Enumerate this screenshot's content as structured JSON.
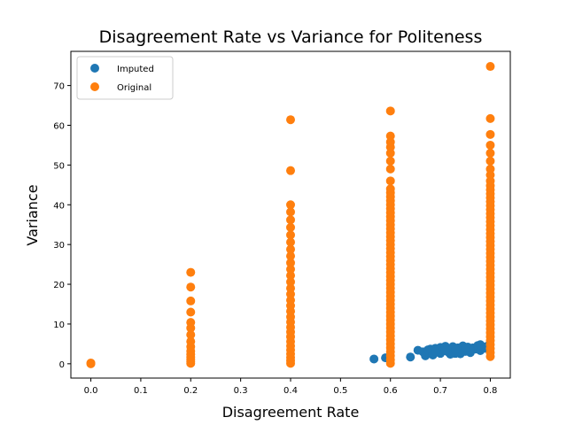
{
  "chart_data": {
    "type": "scatter",
    "title": "Disagreement Rate vs Variance for Politeness",
    "xlabel": "Disagreement Rate",
    "ylabel": "Variance",
    "xlim": [
      -0.04,
      0.84
    ],
    "ylim": [
      -3.6,
      78.6
    ],
    "xticks": [
      0.0,
      0.1,
      0.2,
      0.3,
      0.4,
      0.5,
      0.6,
      0.7,
      0.8
    ],
    "yticks": [
      0,
      10,
      20,
      30,
      40,
      50,
      60,
      70
    ],
    "grid": false,
    "legend_position": "upper left",
    "series": [
      {
        "name": "Imputed",
        "color": "#1f77b4",
        "points": [
          [
            0.567,
            1.2
          ],
          [
            0.59,
            1.5
          ],
          [
            0.64,
            1.7
          ],
          [
            0.655,
            3.4
          ],
          [
            0.665,
            3.0
          ],
          [
            0.67,
            2.0
          ],
          [
            0.675,
            3.5
          ],
          [
            0.68,
            3.7
          ],
          [
            0.685,
            2.2
          ],
          [
            0.69,
            3.9
          ],
          [
            0.695,
            3.5
          ],
          [
            0.7,
            4.1
          ],
          [
            0.705,
            3.2
          ],
          [
            0.71,
            4.4
          ],
          [
            0.715,
            3.0
          ],
          [
            0.72,
            3.8
          ],
          [
            0.725,
            4.3
          ],
          [
            0.73,
            2.6
          ],
          [
            0.735,
            4.0
          ],
          [
            0.74,
            3.6
          ],
          [
            0.745,
            4.5
          ],
          [
            0.75,
            3.1
          ],
          [
            0.755,
            4.2
          ],
          [
            0.76,
            2.8
          ],
          [
            0.765,
            4.0
          ],
          [
            0.77,
            3.7
          ],
          [
            0.775,
            4.6
          ],
          [
            0.78,
            3.3
          ],
          [
            0.785,
            4.3
          ],
          [
            0.79,
            3.9
          ],
          [
            0.795,
            4.5
          ],
          [
            0.7,
            2.6
          ],
          [
            0.72,
            2.4
          ],
          [
            0.74,
            2.5
          ],
          [
            0.76,
            3.4
          ],
          [
            0.78,
            4.8
          ],
          [
            0.73,
            3.5
          ],
          [
            0.75,
            4.0
          ],
          [
            0.71,
            3.3
          ],
          [
            0.69,
            3.0
          ]
        ]
      },
      {
        "name": "Original",
        "color": "#ff7f0e",
        "points": [
          [
            0.0,
            0.0
          ],
          [
            0.0,
            0.2
          ],
          [
            0.2,
            0.1
          ],
          [
            0.2,
            0.6
          ],
          [
            0.2,
            1.1
          ],
          [
            0.2,
            1.7
          ],
          [
            0.2,
            2.4
          ],
          [
            0.2,
            3.2
          ],
          [
            0.2,
            4.3
          ],
          [
            0.2,
            5.6
          ],
          [
            0.2,
            7.3
          ],
          [
            0.2,
            9.0
          ],
          [
            0.2,
            10.4
          ],
          [
            0.2,
            13.0
          ],
          [
            0.2,
            15.8
          ],
          [
            0.2,
            19.3
          ],
          [
            0.2,
            23.0
          ],
          [
            0.4,
            0.1
          ],
          [
            0.4,
            0.8
          ],
          [
            0.4,
            1.6
          ],
          [
            0.4,
            2.5
          ],
          [
            0.4,
            3.5
          ],
          [
            0.4,
            4.5
          ],
          [
            0.4,
            5.6
          ],
          [
            0.4,
            6.8
          ],
          [
            0.4,
            8.0
          ],
          [
            0.4,
            9.2
          ],
          [
            0.4,
            10.5
          ],
          [
            0.4,
            11.8
          ],
          [
            0.4,
            13.2
          ],
          [
            0.4,
            14.6
          ],
          [
            0.4,
            16.0
          ],
          [
            0.4,
            17.5
          ],
          [
            0.4,
            19.0
          ],
          [
            0.4,
            20.6
          ],
          [
            0.4,
            22.2
          ],
          [
            0.4,
            23.8
          ],
          [
            0.4,
            25.4
          ],
          [
            0.4,
            27.1
          ],
          [
            0.4,
            28.8
          ],
          [
            0.4,
            30.6
          ],
          [
            0.4,
            32.4
          ],
          [
            0.4,
            34.3
          ],
          [
            0.4,
            36.2
          ],
          [
            0.4,
            38.2
          ],
          [
            0.4,
            40.0
          ],
          [
            0.4,
            48.6
          ],
          [
            0.4,
            61.4
          ],
          [
            0.6,
            0.1
          ],
          [
            0.6,
            1.0
          ],
          [
            0.6,
            2.0
          ],
          [
            0.6,
            3.0
          ],
          [
            0.6,
            4.0
          ],
          [
            0.6,
            5.0
          ],
          [
            0.6,
            6.0
          ],
          [
            0.6,
            7.0
          ],
          [
            0.6,
            8.0
          ],
          [
            0.6,
            9.0
          ],
          [
            0.6,
            10.0
          ],
          [
            0.6,
            11.0
          ],
          [
            0.6,
            12.0
          ],
          [
            0.6,
            13.0
          ],
          [
            0.6,
            14.0
          ],
          [
            0.6,
            15.0
          ],
          [
            0.6,
            16.0
          ],
          [
            0.6,
            17.0
          ],
          [
            0.6,
            18.0
          ],
          [
            0.6,
            19.0
          ],
          [
            0.6,
            20.0
          ],
          [
            0.6,
            21.0
          ],
          [
            0.6,
            22.0
          ],
          [
            0.6,
            23.0
          ],
          [
            0.6,
            24.0
          ],
          [
            0.6,
            25.0
          ],
          [
            0.6,
            26.0
          ],
          [
            0.6,
            27.0
          ],
          [
            0.6,
            28.0
          ],
          [
            0.6,
            29.0
          ],
          [
            0.6,
            30.0
          ],
          [
            0.6,
            31.0
          ],
          [
            0.6,
            32.0
          ],
          [
            0.6,
            33.0
          ],
          [
            0.6,
            34.0
          ],
          [
            0.6,
            35.0
          ],
          [
            0.6,
            36.0
          ],
          [
            0.6,
            37.0
          ],
          [
            0.6,
            38.0
          ],
          [
            0.6,
            39.0
          ],
          [
            0.6,
            40.0
          ],
          [
            0.6,
            41.0
          ],
          [
            0.6,
            42.0
          ],
          [
            0.6,
            43.0
          ],
          [
            0.6,
            44.0
          ],
          [
            0.6,
            46.0
          ],
          [
            0.6,
            49.0
          ],
          [
            0.6,
            51.0
          ],
          [
            0.6,
            53.0
          ],
          [
            0.6,
            54.5
          ],
          [
            0.6,
            55.8
          ],
          [
            0.6,
            57.3
          ],
          [
            0.6,
            63.6
          ],
          [
            0.8,
            1.8
          ],
          [
            0.8,
            2.8
          ],
          [
            0.8,
            3.8
          ],
          [
            0.8,
            4.8
          ],
          [
            0.8,
            5.8
          ],
          [
            0.8,
            6.8
          ],
          [
            0.8,
            7.8
          ],
          [
            0.8,
            8.8
          ],
          [
            0.8,
            9.8
          ],
          [
            0.8,
            10.8
          ],
          [
            0.8,
            11.8
          ],
          [
            0.8,
            12.8
          ],
          [
            0.8,
            13.8
          ],
          [
            0.8,
            14.8
          ],
          [
            0.8,
            15.8
          ],
          [
            0.8,
            16.8
          ],
          [
            0.8,
            17.8
          ],
          [
            0.8,
            18.8
          ],
          [
            0.8,
            19.8
          ],
          [
            0.8,
            20.8
          ],
          [
            0.8,
            21.8
          ],
          [
            0.8,
            22.8
          ],
          [
            0.8,
            23.8
          ],
          [
            0.8,
            24.8
          ],
          [
            0.8,
            25.8
          ],
          [
            0.8,
            26.8
          ],
          [
            0.8,
            27.8
          ],
          [
            0.8,
            28.8
          ],
          [
            0.8,
            29.8
          ],
          [
            0.8,
            30.8
          ],
          [
            0.8,
            31.8
          ],
          [
            0.8,
            32.8
          ],
          [
            0.8,
            33.8
          ],
          [
            0.8,
            34.8
          ],
          [
            0.8,
            35.8
          ],
          [
            0.8,
            36.8
          ],
          [
            0.8,
            37.8
          ],
          [
            0.8,
            38.8
          ],
          [
            0.8,
            39.8
          ],
          [
            0.8,
            40.8
          ],
          [
            0.8,
            41.8
          ],
          [
            0.8,
            42.8
          ],
          [
            0.8,
            43.8
          ],
          [
            0.8,
            44.8
          ],
          [
            0.8,
            46.0
          ],
          [
            0.8,
            47.5
          ],
          [
            0.8,
            49.0
          ],
          [
            0.8,
            51.0
          ],
          [
            0.8,
            53.0
          ],
          [
            0.8,
            55.0
          ],
          [
            0.8,
            57.7
          ],
          [
            0.8,
            61.7
          ],
          [
            0.8,
            74.8
          ]
        ]
      }
    ]
  }
}
